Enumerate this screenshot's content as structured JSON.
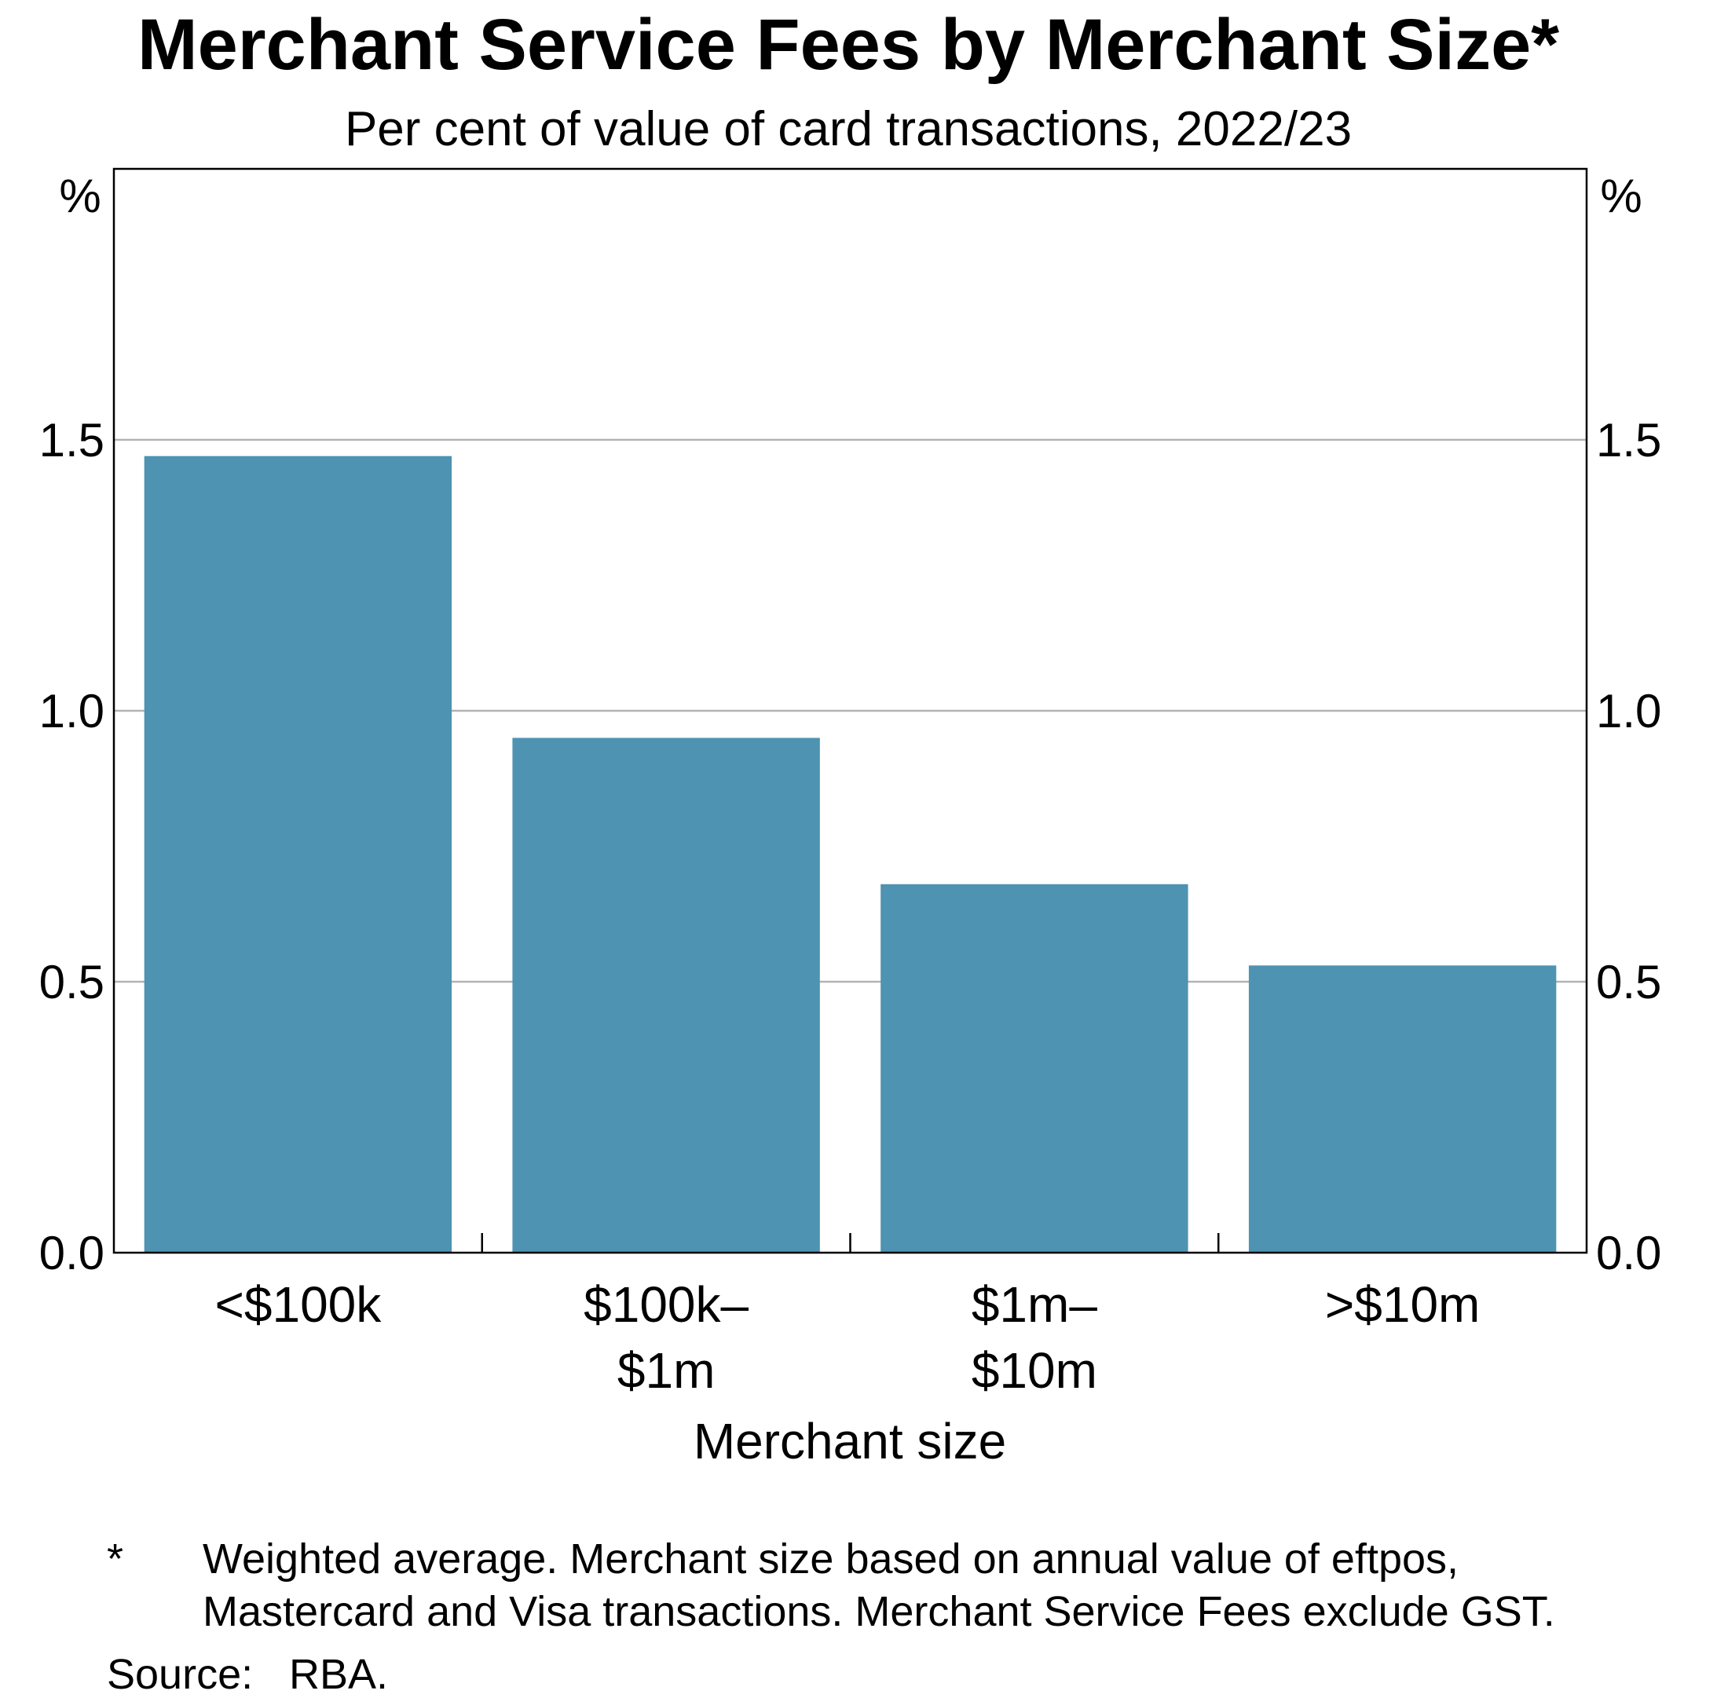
{
  "chart_data": {
    "type": "bar",
    "title": "Merchant Service Fees by Merchant Size*",
    "subtitle": "Per cent of value of card transactions, 2022/23",
    "xlabel": "Merchant size",
    "ylabel": "",
    "y_unit_left": "%",
    "y_unit_right": "%",
    "ylim": [
      0,
      2.0
    ],
    "yticks": [
      0.0,
      0.5,
      1.0,
      1.5
    ],
    "ytick_labels": [
      "0.0",
      "0.5",
      "1.0",
      "1.5"
    ],
    "categories": [
      [
        "<$100k"
      ],
      [
        "$100k–",
        "$1m"
      ],
      [
        "$1m–",
        "$10m"
      ],
      [
        ">$10m"
      ]
    ],
    "values": [
      1.47,
      0.95,
      0.68,
      0.53
    ],
    "bar_color": "#4e93b2",
    "grid": true,
    "grid_color": "#b3b3b3",
    "footnote_marker": "*",
    "footnote_lines": [
      "Weighted average. Merchant size based on annual value of eftpos,",
      "Mastercard and Visa transactions. Merchant Service Fees exclude GST."
    ],
    "source_label": "Source:",
    "source_text": "RBA."
  }
}
